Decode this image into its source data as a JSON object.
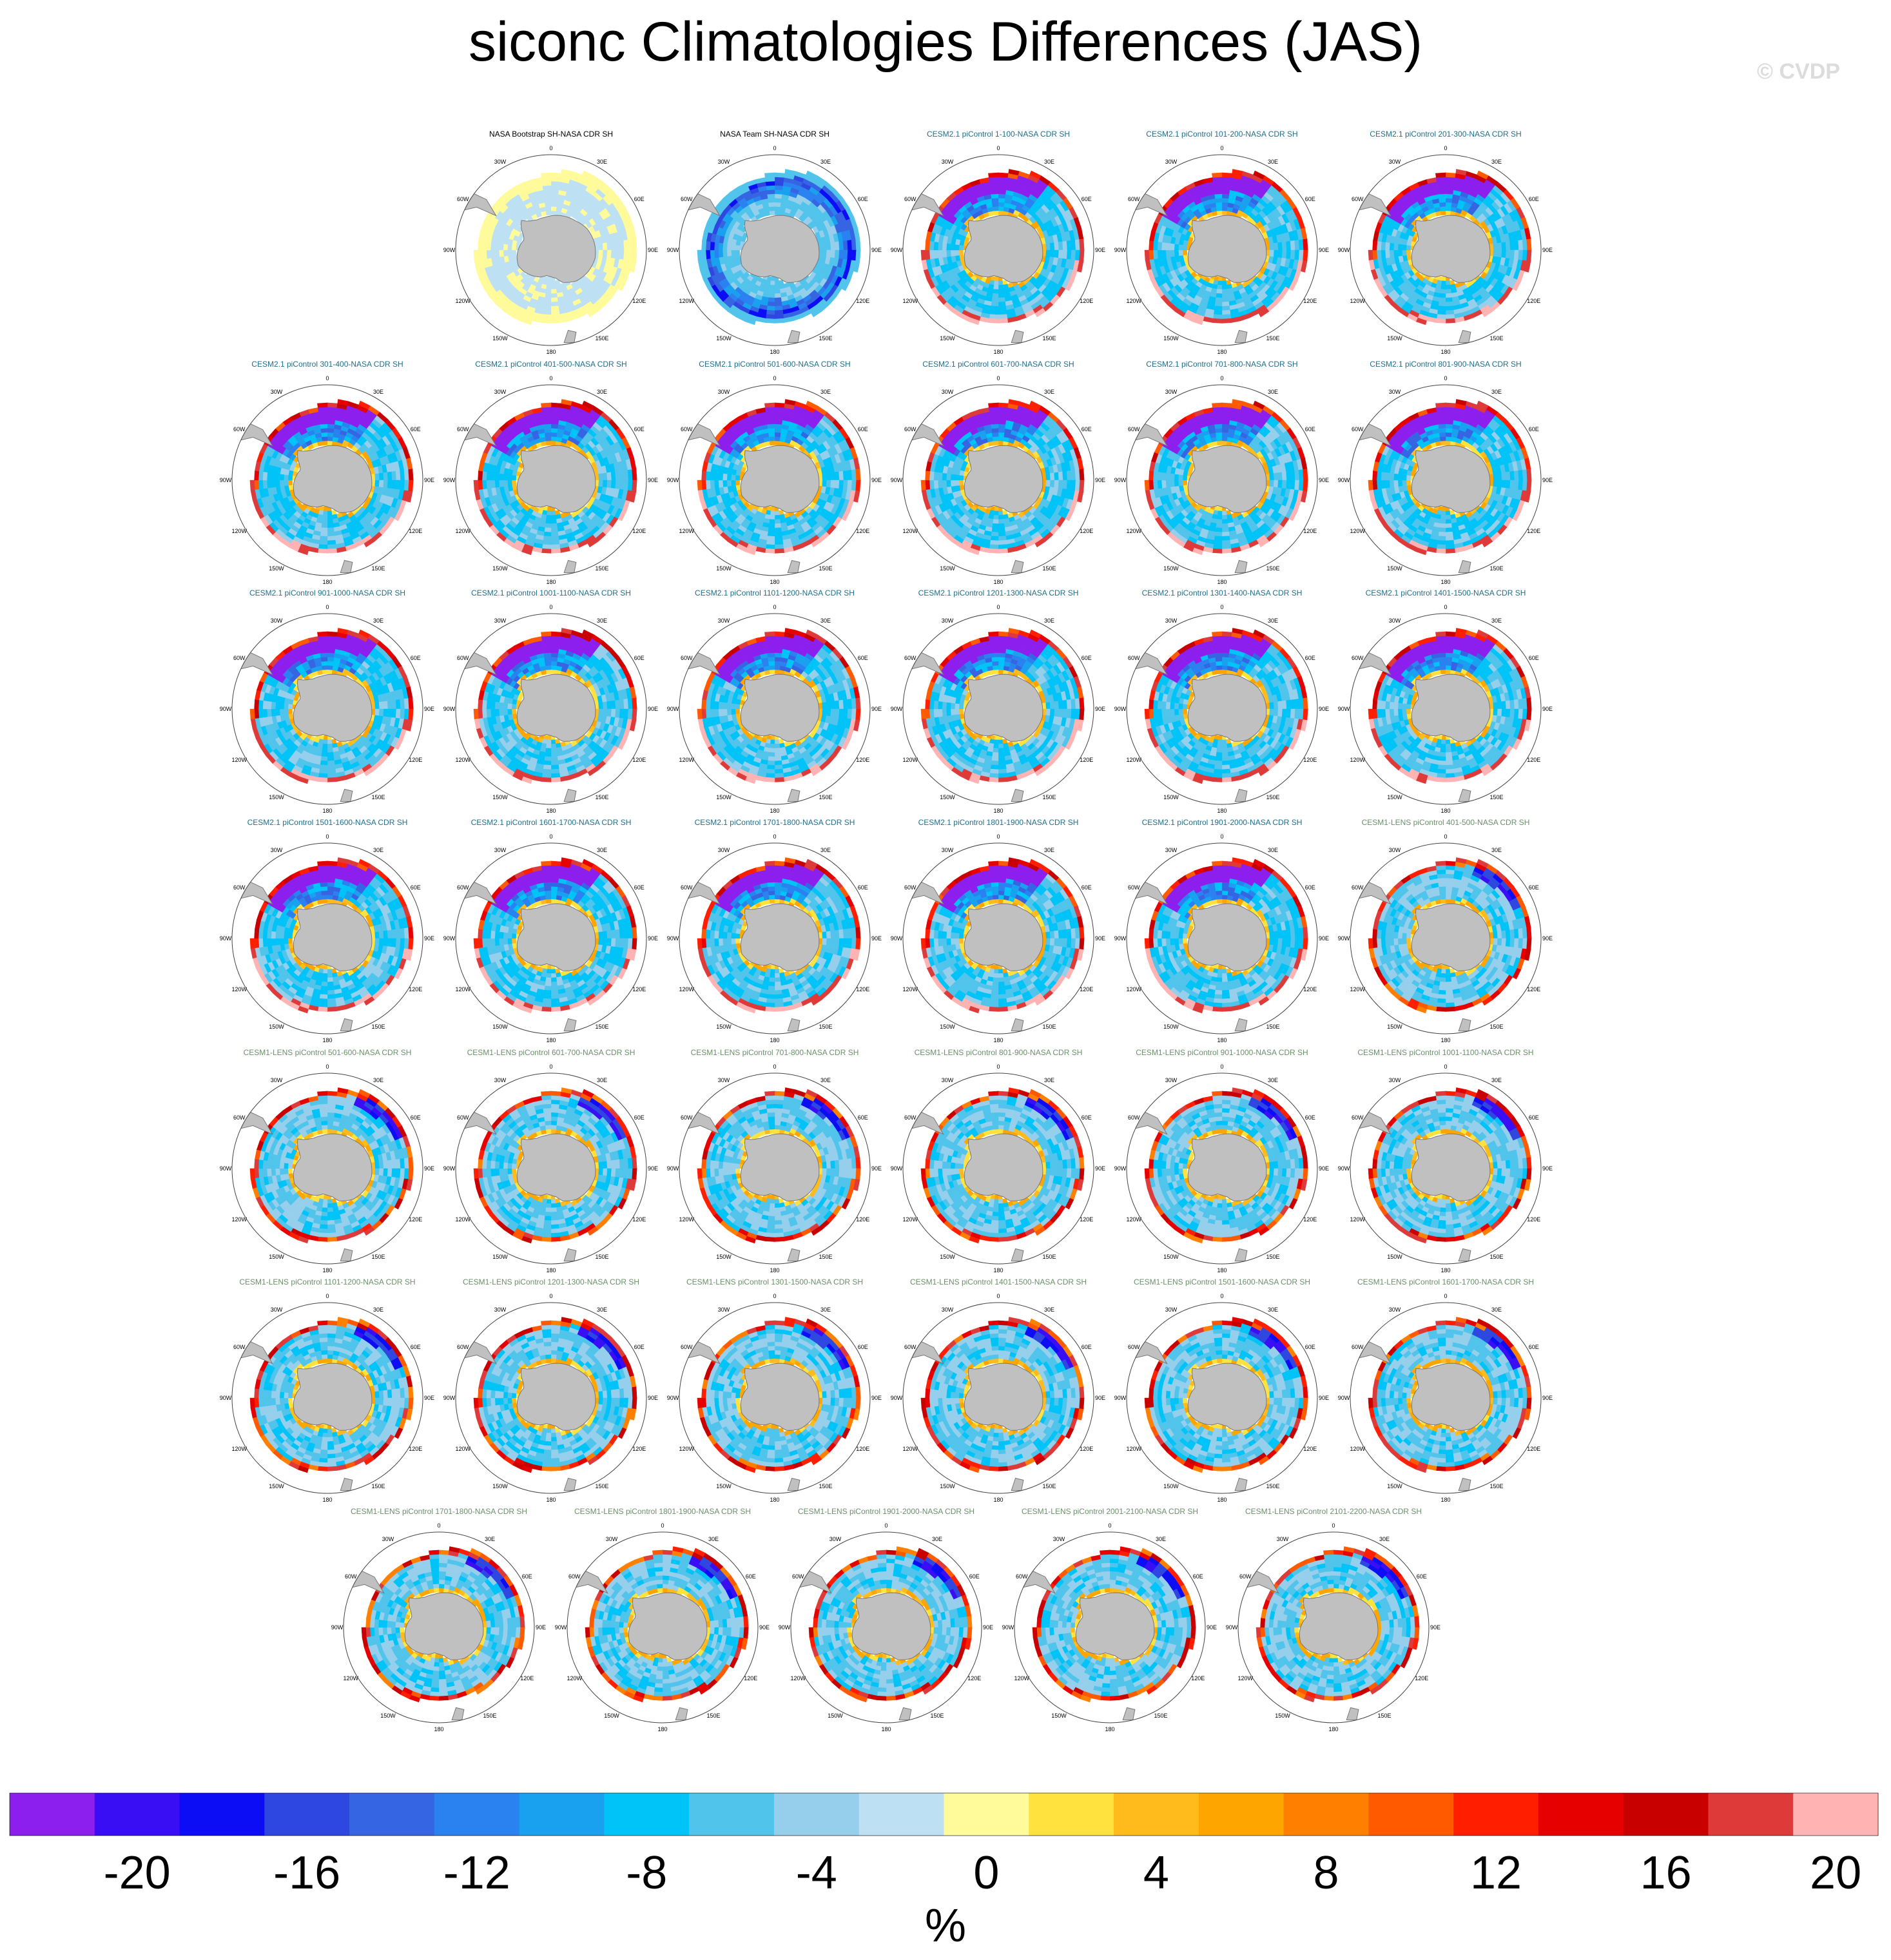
{
  "title": "siconc Climatologies Differences (JAS)",
  "watermark": "© CVDP",
  "colors": {
    "land": "#c0c0c0",
    "coast": "#777777",
    "obs_title": "#000000",
    "cesm2_title": "#1f6f8b",
    "cesm1_title": "#6c8f6c"
  },
  "chart_data": {
    "type": "heatmap",
    "projection": "south polar stereographic",
    "field": "siconc",
    "season": "JAS",
    "lon_labels": [
      "0",
      "30E",
      "60E",
      "90E",
      "120E",
      "150E",
      "180",
      "150W",
      "120W",
      "90W",
      "60W",
      "30W"
    ],
    "panels": [
      {
        "title": "NASA Bootstrap SH-NASA CDR SH",
        "group": "obs",
        "pattern": "bootstrap"
      },
      {
        "title": "NASA Team SH-NASA CDR SH",
        "group": "obs",
        "pattern": "team"
      },
      {
        "title": "CESM2.1 piControl 1-100-NASA CDR SH",
        "group": "cesm2",
        "pattern": "cesm2"
      },
      {
        "title": "CESM2.1 piControl 101-200-NASA CDR SH",
        "group": "cesm2",
        "pattern": "cesm2"
      },
      {
        "title": "CESM2.1 piControl 201-300-NASA CDR SH",
        "group": "cesm2",
        "pattern": "cesm2"
      },
      {
        "title": "CESM2.1 piControl 301-400-NASA CDR SH",
        "group": "cesm2",
        "pattern": "cesm2"
      },
      {
        "title": "CESM2.1 piControl 401-500-NASA CDR SH",
        "group": "cesm2",
        "pattern": "cesm2"
      },
      {
        "title": "CESM2.1 piControl 501-600-NASA CDR SH",
        "group": "cesm2",
        "pattern": "cesm2"
      },
      {
        "title": "CESM2.1 piControl 601-700-NASA CDR SH",
        "group": "cesm2",
        "pattern": "cesm2"
      },
      {
        "title": "CESM2.1 piControl 701-800-NASA CDR SH",
        "group": "cesm2",
        "pattern": "cesm2"
      },
      {
        "title": "CESM2.1 piControl 801-900-NASA CDR SH",
        "group": "cesm2",
        "pattern": "cesm2"
      },
      {
        "title": "CESM2.1 piControl 901-1000-NASA CDR SH",
        "group": "cesm2",
        "pattern": "cesm2"
      },
      {
        "title": "CESM2.1 piControl 1001-1100-NASA CDR SH",
        "group": "cesm2",
        "pattern": "cesm2"
      },
      {
        "title": "CESM2.1 piControl 1101-1200-NASA CDR SH",
        "group": "cesm2",
        "pattern": "cesm2"
      },
      {
        "title": "CESM2.1 piControl 1201-1300-NASA CDR SH",
        "group": "cesm2",
        "pattern": "cesm2"
      },
      {
        "title": "CESM2.1 piControl 1301-1400-NASA CDR SH",
        "group": "cesm2",
        "pattern": "cesm2"
      },
      {
        "title": "CESM2.1 piControl 1401-1500-NASA CDR SH",
        "group": "cesm2",
        "pattern": "cesm2"
      },
      {
        "title": "CESM2.1 piControl 1501-1600-NASA CDR SH",
        "group": "cesm2",
        "pattern": "cesm2"
      },
      {
        "title": "CESM2.1 piControl 1601-1700-NASA CDR SH",
        "group": "cesm2",
        "pattern": "cesm2"
      },
      {
        "title": "CESM2.1 piControl 1701-1800-NASA CDR SH",
        "group": "cesm2",
        "pattern": "cesm2"
      },
      {
        "title": "CESM2.1 piControl 1801-1900-NASA CDR SH",
        "group": "cesm2",
        "pattern": "cesm2"
      },
      {
        "title": "CESM2.1 piControl 1901-2000-NASA CDR SH",
        "group": "cesm2",
        "pattern": "cesm2"
      },
      {
        "title": "CESM1-LENS piControl 401-500-NASA CDR SH",
        "group": "cesm1",
        "pattern": "cesm1"
      },
      {
        "title": "CESM1-LENS piControl 501-600-NASA CDR SH",
        "group": "cesm1",
        "pattern": "cesm1"
      },
      {
        "title": "CESM1-LENS piControl 601-700-NASA CDR SH",
        "group": "cesm1",
        "pattern": "cesm1"
      },
      {
        "title": "CESM1-LENS piControl 701-800-NASA CDR SH",
        "group": "cesm1",
        "pattern": "cesm1"
      },
      {
        "title": "CESM1-LENS piControl 801-900-NASA CDR SH",
        "group": "cesm1",
        "pattern": "cesm1"
      },
      {
        "title": "CESM1-LENS piControl 901-1000-NASA CDR SH",
        "group": "cesm1",
        "pattern": "cesm1"
      },
      {
        "title": "CESM1-LENS piControl 1001-1100-NASA CDR SH",
        "group": "cesm1",
        "pattern": "cesm1"
      },
      {
        "title": "CESM1-LENS piControl 1101-1200-NASA CDR SH",
        "group": "cesm1",
        "pattern": "cesm1"
      },
      {
        "title": "CESM1-LENS piControl 1201-1300-NASA CDR SH",
        "group": "cesm1",
        "pattern": "cesm1"
      },
      {
        "title": "CESM1-LENS piControl 1301-1500-NASA CDR SH",
        "group": "cesm1",
        "pattern": "cesm1"
      },
      {
        "title": "CESM1-LENS piControl 1401-1500-NASA CDR SH",
        "group": "cesm1",
        "pattern": "cesm1"
      },
      {
        "title": "CESM1-LENS piControl 1501-1600-NASA CDR SH",
        "group": "cesm1",
        "pattern": "cesm1"
      },
      {
        "title": "CESM1-LENS piControl 1601-1700-NASA CDR SH",
        "group": "cesm1",
        "pattern": "cesm1"
      },
      {
        "title": "CESM1-LENS piControl 1701-1800-NASA CDR SH",
        "group": "cesm1",
        "pattern": "cesm1"
      },
      {
        "title": "CESM1-LENS piControl 1801-1900-NASA CDR SH",
        "group": "cesm1",
        "pattern": "cesm1"
      },
      {
        "title": "CESM1-LENS piControl 1901-2000-NASA CDR SH",
        "group": "cesm1",
        "pattern": "cesm1"
      },
      {
        "title": "CESM1-LENS piControl 2001-2100-NASA CDR SH",
        "group": "cesm1",
        "pattern": "cesm1"
      },
      {
        "title": "CESM1-LENS piControl 2101-2200-NASA CDR SH",
        "group": "cesm1",
        "pattern": "cesm1"
      }
    ],
    "colorbar": {
      "label": "%",
      "range": [
        -22,
        22
      ],
      "step": 2,
      "tick_values": [
        -20,
        -16,
        -12,
        -8,
        -4,
        0,
        4,
        8,
        12,
        16,
        20
      ],
      "tick_labels": [
        "-20",
        "-16",
        "-12",
        "-8",
        "-4",
        "0",
        "4",
        "8",
        "12",
        "16",
        "20"
      ],
      "colors": [
        "#8c1eee",
        "#3a0ef5",
        "#0c0cf5",
        "#2e47e0",
        "#3565e2",
        "#2a82f0",
        "#19a1f0",
        "#00c3f7",
        "#51c4ec",
        "#96cfec",
        "#bde1f3",
        "#fffa9a",
        "#ffe23d",
        "#ffbb1c",
        "#ffa500",
        "#ff8000",
        "#ff5a00",
        "#ff1e00",
        "#e60000",
        "#c80000",
        "#de3a3a",
        "#ffb3b3"
      ]
    }
  }
}
